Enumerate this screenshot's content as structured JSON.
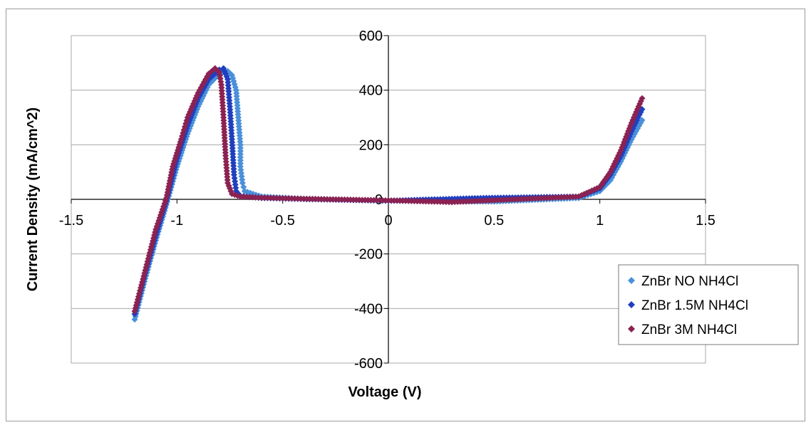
{
  "chart_data": {
    "type": "scatter",
    "title": "",
    "xlabel": "Voltage (V)",
    "ylabel": "Current Density (mA/cm^2)",
    "xlim": [
      -1.5,
      1.5
    ],
    "ylim": [
      -600,
      600
    ],
    "xticks": [
      -1.5,
      -1,
      -0.5,
      0,
      0.5,
      1,
      1.5
    ],
    "xtick_labels": [
      "-1.5",
      "-1",
      "-0.5",
      "0",
      "0.5",
      "1",
      "1.5"
    ],
    "yticks": [
      600,
      400,
      200,
      0,
      -200,
      -400,
      -600
    ],
    "ytick_labels": [
      "600",
      "400",
      "200",
      "0",
      "-200",
      "-400",
      "-600"
    ],
    "ytick_labels_shown": [
      "600",
      "400",
      "200",
      "0",
      "-200",
      "-400",
      "-600"
    ],
    "grid": "horizontal",
    "legend_position": "right",
    "marker": "diamond",
    "series": [
      {
        "name": "ZnBr NO NH4Cl",
        "color": "#4a90d9",
        "x": [
          -1.2,
          -1.15,
          -1.1,
          -1.05,
          -1.0,
          -0.95,
          -0.9,
          -0.85,
          -0.8,
          -0.76,
          -0.74,
          -0.72,
          -0.71,
          -0.7,
          -0.7,
          -0.69,
          -0.68,
          -0.6,
          -0.4,
          0.0,
          0.5,
          0.9,
          1.0,
          1.05,
          1.1,
          1.15,
          1.2
        ],
        "y": [
          -440,
          -290,
          -150,
          -20,
          120,
          240,
          340,
          420,
          460,
          470,
          455,
          400,
          300,
          200,
          120,
          60,
          30,
          10,
          2,
          -5,
          -8,
          5,
          30,
          70,
          140,
          220,
          290
        ]
      },
      {
        "name": "ZnBr 1.5M NH4Cl",
        "color": "#1f3fbf",
        "x": [
          -1.2,
          -1.15,
          -1.1,
          -1.05,
          -1.0,
          -0.95,
          -0.9,
          -0.85,
          -0.8,
          -0.78,
          -0.76,
          -0.75,
          -0.74,
          -0.73,
          -0.72,
          -0.7,
          -0.6,
          -0.4,
          0.0,
          0.45,
          0.9,
          1.0,
          1.05,
          1.1,
          1.15,
          1.2
        ],
        "y": [
          -420,
          -270,
          -130,
          -5,
          150,
          270,
          370,
          440,
          475,
          480,
          440,
          340,
          220,
          90,
          30,
          12,
          5,
          1,
          -5,
          5,
          10,
          40,
          90,
          160,
          250,
          330
        ]
      },
      {
        "name": "ZnBr 3M NH4Cl",
        "color": "#8b2252",
        "x": [
          -1.2,
          -1.15,
          -1.1,
          -1.05,
          -1.02,
          -0.98,
          -0.95,
          -0.9,
          -0.85,
          -0.82,
          -0.8,
          -0.79,
          -0.78,
          -0.77,
          -0.76,
          -0.74,
          -0.7,
          -0.6,
          -0.4,
          0.0,
          0.3,
          0.9,
          1.0,
          1.05,
          1.1,
          1.15,
          1.2
        ],
        "y": [
          -410,
          -260,
          -110,
          5,
          120,
          220,
          300,
          390,
          460,
          480,
          465,
          420,
          300,
          160,
          60,
          20,
          10,
          6,
          2,
          -4,
          -10,
          10,
          45,
          100,
          180,
          280,
          370
        ]
      }
    ]
  }
}
